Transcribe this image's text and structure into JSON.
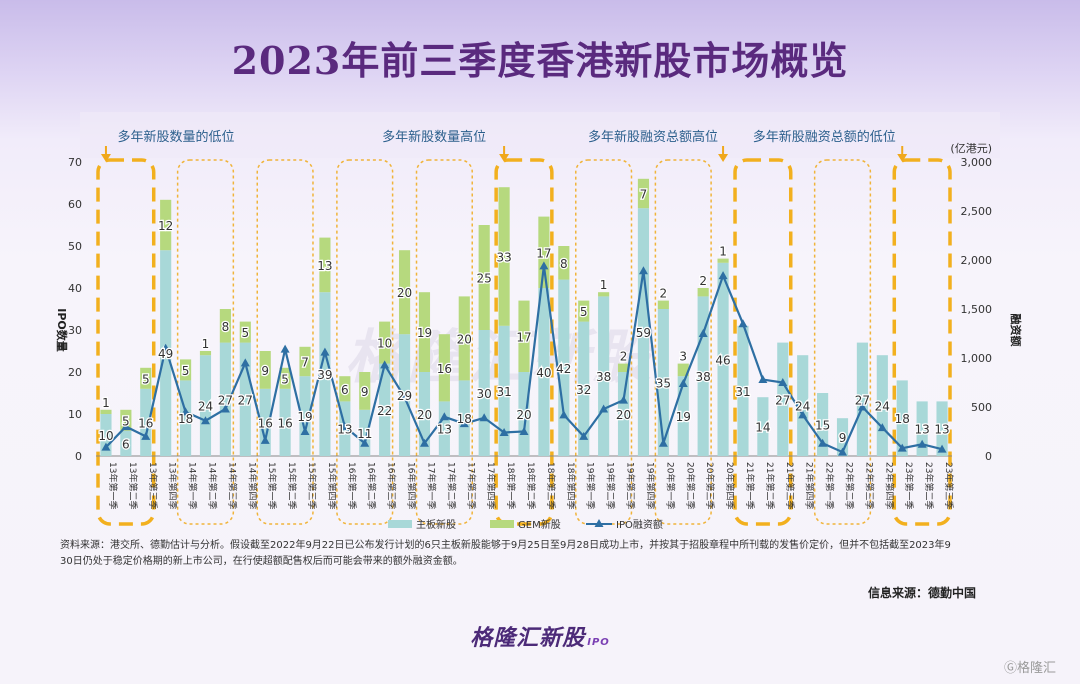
{
  "title": "2023年前三季度香港新股市场概览",
  "watermark_center": "格隆汇新股",
  "notes": {
    "line1": "资料来源：港交所、德勤估计与分析。假设截至2022年9月22日已公布发行计划的6只主板新股能够于9月25日至9月28日成功上市，并按其于招股章程中所刊载的发售价定价，但并不包括截至2023年9",
    "line2": "30日仍处于稳定价格期的新上市公司，在行使超额配售权后而可能会带来的额外融资金额。"
  },
  "source": "信息来源：德勤中国",
  "brand": {
    "text": "格隆汇新股",
    "suffix": "IPO"
  },
  "corner_watermark": "格隆汇",
  "chart_data": {
    "type": "bar",
    "categories": [
      "13年第一季",
      "13年第二季",
      "13年第三季",
      "13年第四季",
      "14年第一季",
      "14年第二季",
      "14年第三季",
      "14年第四季",
      "15年第一季",
      "15年第二季",
      "15年第三季",
      "15年第四季",
      "16年第一季",
      "16年第二季",
      "16年第三季",
      "16年第四季",
      "17年第一季",
      "17年第二季",
      "17年第三季",
      "17年第四季",
      "18年第一季",
      "18年第二季",
      "18年第三季",
      "18年第四季",
      "19年第一季",
      "19年第二季",
      "19年第三季",
      "19年第四季",
      "20年第一季",
      "20年第二季",
      "20年第三季",
      "20年第四季",
      "21年第一季",
      "21年第二季",
      "21年第三季",
      "21年第四季",
      "22年第一季",
      "22年第二季",
      "22年第三季",
      "22年第四季",
      "23年第一季",
      "23年第二季",
      "23年第三季"
    ],
    "series": [
      {
        "name": "主板新股",
        "color": "#a8d8d8",
        "values": [
          10,
          6,
          16,
          49,
          18,
          24,
          27,
          27,
          16,
          16,
          19,
          39,
          13,
          11,
          22,
          29,
          20,
          13,
          18,
          30,
          31,
          20,
          40,
          42,
          32,
          38,
          20,
          59,
          35,
          19,
          38,
          46,
          31,
          14,
          27,
          24,
          15,
          9,
          27,
          24,
          18,
          13,
          13
        ]
      },
      {
        "name": "GEM新股",
        "color": "#b6d97e",
        "values": [
          1,
          5,
          5,
          12,
          5,
          1,
          8,
          5,
          9,
          5,
          7,
          13,
          6,
          9,
          10,
          20,
          19,
          16,
          20,
          25,
          33,
          17,
          17,
          8,
          5,
          1,
          2,
          7,
          2,
          3,
          2,
          1,
          0,
          0,
          0,
          0,
          0,
          0,
          0,
          0,
          0,
          0,
          0
        ]
      },
      {
        "name": "IPO融资额",
        "color": "#2e6fa3",
        "values": [
          90,
          300,
          200,
          1100,
          450,
          360,
          480,
          950,
          160,
          1090,
          250,
          1060,
          300,
          130,
          930,
          600,
          130,
          400,
          330,
          390,
          240,
          250,
          1940,
          420,
          200,
          480,
          570,
          1890,
          130,
          740,
          1250,
          1840,
          1350,
          780,
          750,
          420,
          130,
          40,
          500,
          290,
          80,
          120,
          70
        ]
      }
    ],
    "ylabel_left": "IPO数量",
    "ylabel_right": "融资额",
    "unit_right": "(亿港元)",
    "ylim_left": [
      0,
      70
    ],
    "yticks_left": [
      "0",
      "10",
      "20",
      "30",
      "40",
      "50",
      "60",
      "70"
    ],
    "ylim_right": [
      0,
      3000
    ],
    "yticks_right": [
      "0",
      "500",
      "1,000",
      "1,500",
      "2,000",
      "2,500",
      "3,000"
    ],
    "legend": [
      "主板新股",
      "GEM新股",
      "IPO融资额"
    ],
    "legend_position": "bottom",
    "grid": false,
    "highlight_boxes": [
      {
        "from": 0,
        "to": 2,
        "style": "bold"
      },
      {
        "from": 4,
        "to": 6,
        "style": "dotted"
      },
      {
        "from": 8,
        "to": 10,
        "style": "dotted"
      },
      {
        "from": 12,
        "to": 14,
        "style": "dotted"
      },
      {
        "from": 16,
        "to": 18,
        "style": "dotted"
      },
      {
        "from": 20,
        "to": 22,
        "style": "bold"
      },
      {
        "from": 24,
        "to": 26,
        "style": "dotted"
      },
      {
        "from": 28,
        "to": 30,
        "style": "dotted"
      },
      {
        "from": 32,
        "to": 34,
        "style": "bold"
      },
      {
        "from": 36,
        "to": 38,
        "style": "dotted"
      },
      {
        "from": 40,
        "to": 42,
        "style": "bold"
      }
    ],
    "annotations": [
      {
        "text": "多年新股数量的低位",
        "target": 0
      },
      {
        "text": "多年新股数量高位",
        "target": 20
      },
      {
        "text": "多年新股融资总额高位",
        "target": 31
      },
      {
        "text": "多年新股融资总额的低位",
        "target": 40
      }
    ]
  }
}
